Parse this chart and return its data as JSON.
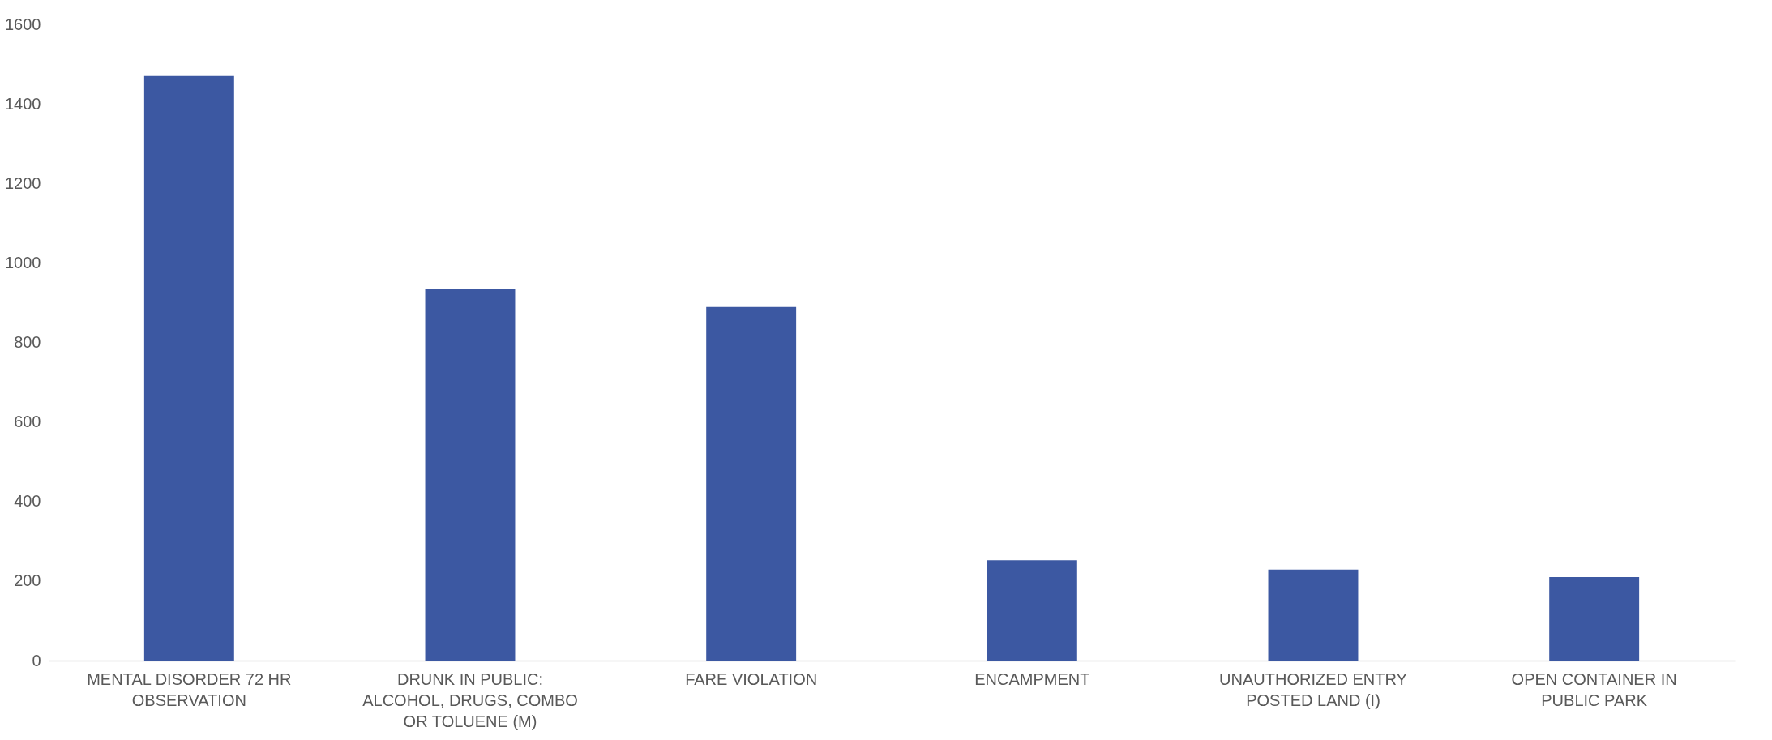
{
  "chart_data": {
    "type": "bar",
    "categories": [
      "MENTAL DISORDER 72 HR OBSERVATION",
      "DRUNK IN PUBLIC: ALCOHOL, DRUGS, COMBO OR TOLUENE (M)",
      "FARE VIOLATION",
      "ENCAMPMENT",
      "UNAUTHORIZED ENTRY POSTED LAND (I)",
      "OPEN CONTAINER IN PUBLIC PARK"
    ],
    "values": [
      1470,
      934,
      889,
      252,
      229,
      210
    ],
    "color": "#3c58a2",
    "ylim": [
      0,
      1600
    ],
    "yticks": [
      0,
      200,
      400,
      600,
      800,
      1000,
      1200,
      1400,
      1600
    ],
    "grid": false
  }
}
